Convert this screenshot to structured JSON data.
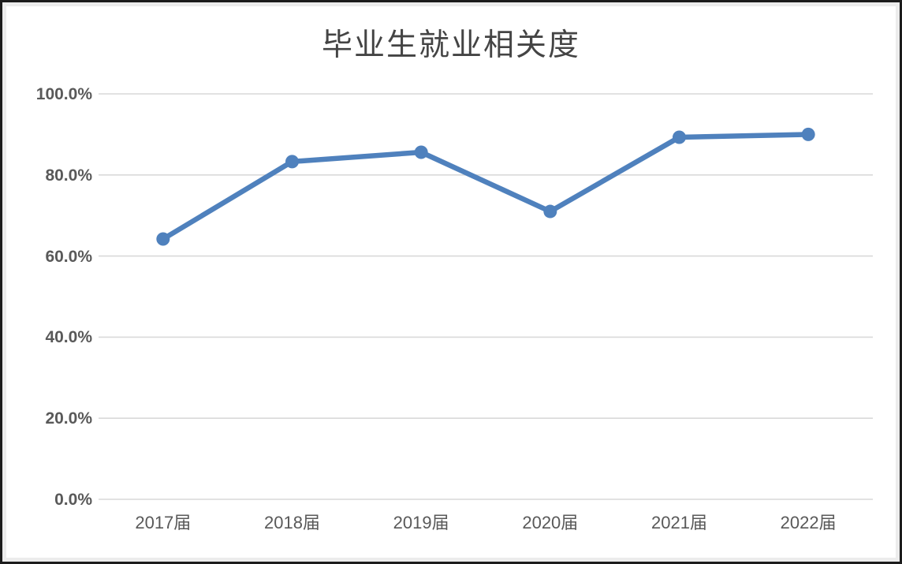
{
  "chart_data": {
    "type": "line",
    "title": "毕业生就业相关度",
    "categories": [
      "2017届",
      "2018届",
      "2019届",
      "2020届",
      "2021届",
      "2022届"
    ],
    "series": [
      {
        "name": "毕业生就业相关度",
        "values": [
          64.2,
          83.3,
          85.6,
          71.0,
          89.3,
          90.0
        ]
      }
    ],
    "unit": "%",
    "xlabel": "",
    "ylabel": "",
    "ylim": [
      0,
      100
    ],
    "ytick_step": 20,
    "ytick_labels": [
      "0.0%",
      "20.0%",
      "40.0%",
      "60.0%",
      "80.0%",
      "100.0%"
    ],
    "grid": true,
    "legend_position": "none",
    "line_color": "#4F81BD",
    "marker": "circle"
  },
  "colors": {
    "title_text": "#444444",
    "axis_text": "#595959",
    "gridline": "#d9d9d9",
    "background": "#ffffff",
    "frame_outer": "#1c1c1c",
    "frame_inner": "#ececec"
  }
}
